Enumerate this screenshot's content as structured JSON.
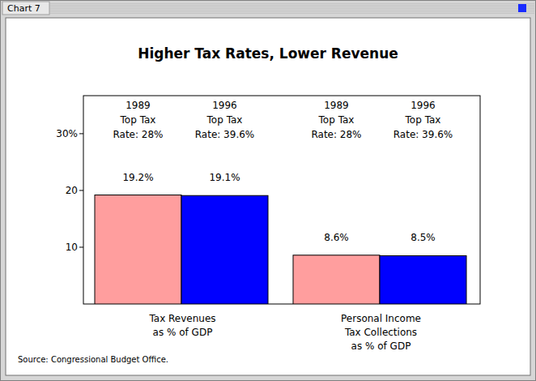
{
  "chart_data": {
    "type": "bar",
    "window_title": "Chart 7",
    "title": "Higher Tax Rates, Lower Revenue",
    "source": "Source:  Congressional Budget Office.",
    "categories": [
      "Tax Revenues\nas % of GDP",
      "Personal Income\nTax Collections\nas  % of GDP"
    ],
    "series": [
      {
        "name": "1989\nTop Tax\nRate: 28%",
        "color": "#ff9e9e",
        "values": [
          19.2,
          8.6
        ],
        "value_labels": [
          "19.2%",
          "8.6%"
        ]
      },
      {
        "name": "1996\nTop Tax\nRate: 39.6%",
        "color": "#0000ff",
        "values": [
          19.1,
          8.5
        ],
        "value_labels": [
          "19.1%",
          "8.5%"
        ]
      }
    ],
    "ylim": [
      0,
      36.7
    ],
    "yticks": [
      10,
      20,
      {
        "value": 30,
        "label": "30%"
      }
    ],
    "data_labels": true,
    "grid": false
  }
}
